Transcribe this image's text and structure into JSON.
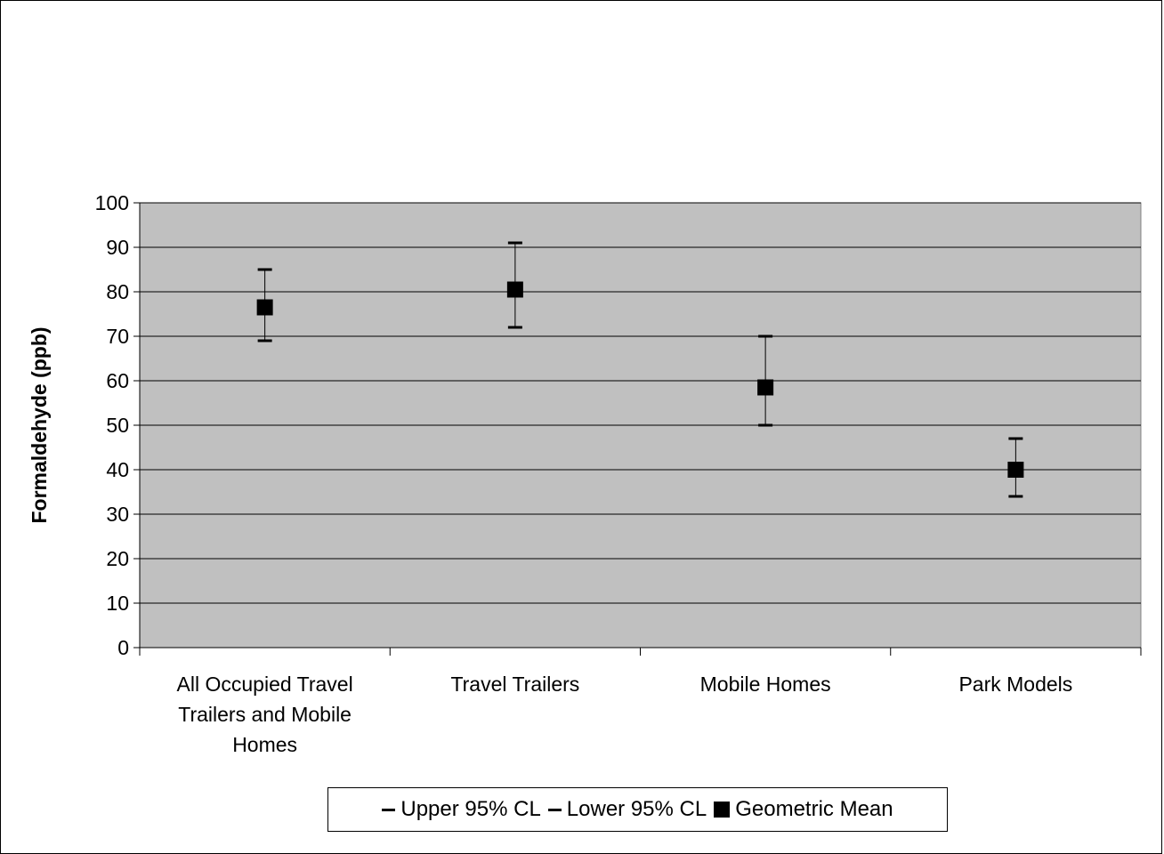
{
  "chart_data": {
    "type": "scatter",
    "categories": [
      "All Occupied Travel Trailers and Mobile Homes",
      "Travel Trailers",
      "Mobile Homes",
      "Park Models"
    ],
    "category_lines": [
      [
        "All Occupied Travel",
        "Trailers and Mobile",
        "Homes"
      ],
      [
        "Travel Trailers"
      ],
      [
        "Mobile Homes"
      ],
      [
        "Park Models"
      ]
    ],
    "series": [
      {
        "name": "Upper 95% CL",
        "values": [
          85,
          91,
          70,
          47
        ]
      },
      {
        "name": "Lower 95% CL",
        "values": [
          69,
          72,
          50,
          34
        ]
      },
      {
        "name": "Geometric Mean",
        "values": [
          76.5,
          80.5,
          58.5,
          40
        ]
      }
    ],
    "ylabel": "Formaldehyde (ppb)",
    "xlabel": "",
    "title": "",
    "ylim": [
      0,
      100
    ],
    "yticks": [
      "0",
      "10",
      "20",
      "30",
      "40",
      "50",
      "60",
      "70",
      "80",
      "90",
      "100"
    ],
    "grid": true,
    "legend_position": "bottom",
    "colors": {
      "plot_bg": "#c0c0c0",
      "marker": "#000000",
      "grid": "#000000"
    }
  }
}
